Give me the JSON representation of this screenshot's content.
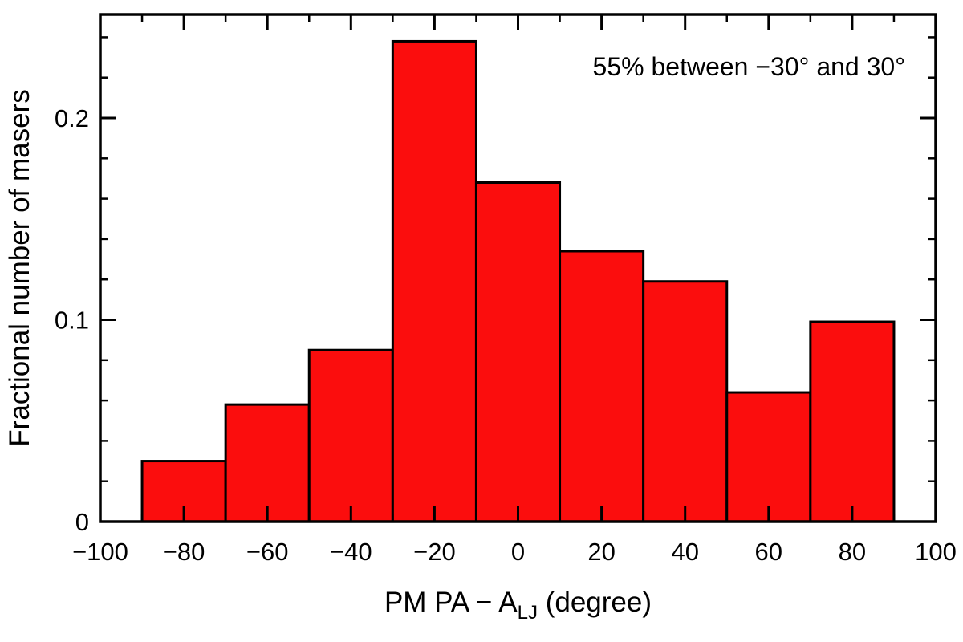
{
  "figure": {
    "background_color": "#ffffff",
    "frame_color": "#000000",
    "annotation": "55% between −30° and 30°"
  },
  "chart_data": {
    "type": "bar",
    "subtype": "histogram",
    "title": "",
    "xlabel": "PM PA − A_LJ (degree)",
    "xlabel_parts": {
      "pre": "PM PA − A",
      "sub": "LJ",
      "post": " (degree)"
    },
    "ylabel": "Fractional number of masers",
    "annotation": "55% between −30° and 30°",
    "bin_edges": [
      -90,
      -70,
      -50,
      -30,
      -10,
      10,
      30,
      50,
      70,
      90
    ],
    "categories": [
      "-90 to -70",
      "-70 to -50",
      "-50 to -30",
      "-30 to -10",
      "-10 to 10",
      "10 to 30",
      "30 to 50",
      "50 to 70",
      "70 to 90"
    ],
    "values": [
      0.03,
      0.058,
      0.085,
      0.238,
      0.168,
      0.134,
      0.119,
      0.064,
      0.099
    ],
    "xlim": [
      -100,
      100
    ],
    "ylim": [
      0,
      0.2513
    ],
    "x_major_ticks": [
      -100,
      -80,
      -60,
      -40,
      -20,
      0,
      20,
      40,
      60,
      80,
      100
    ],
    "x_tick_labels": [
      "−100",
      "−80",
      "−60",
      "−40",
      "−20",
      "0",
      "20",
      "40",
      "60",
      "80",
      "100"
    ],
    "x_minor_tick_step": 10,
    "y_major_ticks": [
      0,
      0.1,
      0.2
    ],
    "y_tick_labels": [
      "0",
      "0.1",
      "0.2"
    ],
    "y_minor_tick_step": 0.02,
    "grid": false,
    "legend": false,
    "bar_color": "#fb0d0d",
    "bar_edge_color": "#000000"
  }
}
